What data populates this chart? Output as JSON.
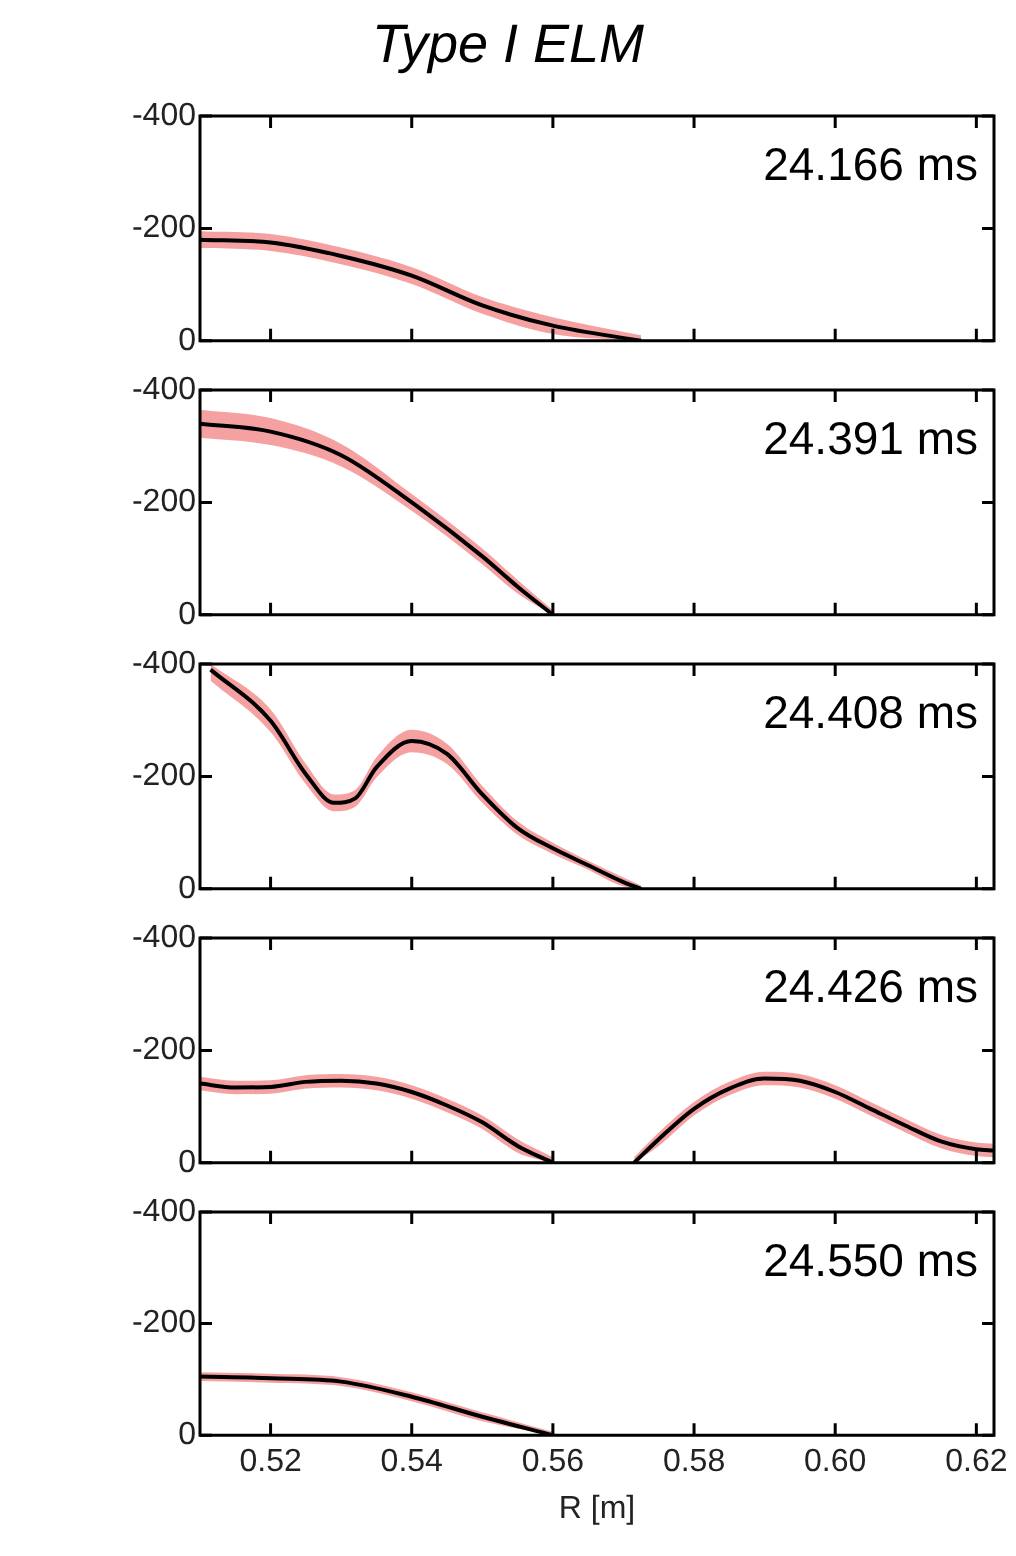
{
  "chart_data": [
    {
      "type": "line",
      "title": "Type I ELM",
      "x": [
        0.51,
        0.52,
        0.53,
        0.54,
        0.55,
        0.56,
        0.5725
      ],
      "series": [
        {
          "color": "#000000",
          "values": [
            -180,
            -175,
            -151,
            -116,
            -63,
            -27,
            0
          ],
          "lower": [
            -195,
            -190,
            -166,
            -131,
            -78,
            -42,
            -10
          ],
          "upper": [
            -165,
            -160,
            -136,
            -101,
            -48,
            -12,
            0
          ]
        }
      ],
      "xlim": [
        0.51,
        0.6225
      ],
      "xticks": [
        {
          "value": 0.52,
          "label": null
        },
        {
          "value": 0.54,
          "label": null
        },
        {
          "value": 0.56,
          "label": null
        },
        {
          "value": 0.58,
          "label": null
        },
        {
          "value": 0.6,
          "label": null
        },
        {
          "value": 0.62,
          "label": null
        }
      ],
      "ylim": [
        0,
        -400
      ],
      "yticks": [
        -400,
        -200,
        0
      ],
      "grid": false,
      "marker": "none",
      "tick_labels": "y",
      "annotations": [
        "24.166 ms"
      ]
    },
    {
      "type": "line",
      "x": [
        0.51,
        0.52,
        0.53,
        0.54,
        0.55,
        0.555,
        0.56
      ],
      "series": [
        {
          "color": "#000000",
          "values": [
            -340,
            -326,
            -284,
            -200,
            -104,
            -50,
            0
          ],
          "lower": [
            -365,
            -350,
            -304,
            -215,
            -118,
            -62,
            -8
          ],
          "upper": [
            -315,
            -302,
            -264,
            -185,
            -90,
            -38,
            0
          ]
        }
      ],
      "xlim": [
        0.51,
        0.6225
      ],
      "xticks": [
        {
          "value": 0.52,
          "label": null
        },
        {
          "value": 0.54,
          "label": null
        },
        {
          "value": 0.56,
          "label": null
        },
        {
          "value": 0.58,
          "label": null
        },
        {
          "value": 0.6,
          "label": null
        },
        {
          "value": 0.62,
          "label": null
        }
      ],
      "ylim": [
        0,
        -400
      ],
      "yticks": [
        -400,
        -200,
        0
      ],
      "grid": false,
      "marker": "none",
      "tick_labels": "y",
      "annotations": [
        "24.391 ms"
      ]
    },
    {
      "type": "line",
      "x": [
        0.5115,
        0.52,
        0.525,
        0.529,
        0.532,
        0.535,
        0.54,
        0.545,
        0.55,
        0.555,
        0.56,
        0.565,
        0.57,
        0.5725
      ],
      "series": [
        {
          "color": "#000000",
          "values": [
            -390,
            -299,
            -204,
            -153,
            -161,
            -216,
            -263,
            -240,
            -168,
            -108,
            -72,
            -42,
            -12,
            0
          ],
          "lower": [
            -400,
            -319,
            -222,
            -168,
            -176,
            -234,
            -283,
            -258,
            -183,
            -120,
            -82,
            -50,
            -20,
            -6
          ],
          "upper": [
            -370,
            -279,
            -186,
            -138,
            -146,
            -198,
            -243,
            -222,
            -153,
            -96,
            -62,
            -34,
            -4,
            0
          ]
        }
      ],
      "xlim": [
        0.51,
        0.6225
      ],
      "xticks": [
        {
          "value": 0.52,
          "label": null
        },
        {
          "value": 0.54,
          "label": null
        },
        {
          "value": 0.56,
          "label": null
        },
        {
          "value": 0.58,
          "label": null
        },
        {
          "value": 0.6,
          "label": null
        },
        {
          "value": 0.62,
          "label": null
        }
      ],
      "ylim": [
        0,
        -400
      ],
      "yticks": [
        -400,
        -200,
        0
      ],
      "grid": false,
      "marker": "none",
      "tick_labels": "y",
      "annotations": [
        "24.408 ms"
      ]
    },
    {
      "type": "line",
      "x": [
        0.51,
        0.515,
        0.52,
        0.525,
        0.53,
        0.535,
        0.54,
        0.545,
        0.55,
        0.555,
        0.56,
        0.5658,
        0.5715,
        0.575,
        0.58,
        0.585,
        0.59,
        0.595,
        0.6,
        0.605,
        0.61,
        0.615,
        0.62,
        0.6225
      ],
      "series": [
        {
          "color": "#000000",
          "values": [
            -141,
            -134,
            -135,
            -144,
            -146,
            -141,
            -126,
            -102,
            -72,
            -30,
            0,
            null,
            0,
            -42,
            -96,
            -132,
            -150,
            -146,
            -126,
            -96,
            -66,
            -38,
            -24,
            -22
          ],
          "lower": [
            -153,
            -146,
            -147,
            -156,
            -158,
            -153,
            -138,
            -114,
            -84,
            -42,
            -10,
            null,
            -10,
            -54,
            -108,
            -144,
            -162,
            -158,
            -138,
            -108,
            -78,
            -50,
            -36,
            -34
          ],
          "upper": [
            -129,
            -122,
            -123,
            -132,
            -134,
            -129,
            -114,
            -90,
            -60,
            -18,
            0,
            null,
            0,
            -30,
            -84,
            -120,
            -138,
            -134,
            -114,
            -84,
            -54,
            -26,
            -12,
            -10
          ]
        }
      ],
      "xlim": [
        0.51,
        0.6225
      ],
      "xticks": [
        {
          "value": 0.52,
          "label": null
        },
        {
          "value": 0.54,
          "label": null
        },
        {
          "value": 0.56,
          "label": null
        },
        {
          "value": 0.58,
          "label": null
        },
        {
          "value": 0.6,
          "label": null
        },
        {
          "value": 0.62,
          "label": null
        }
      ],
      "ylim": [
        0,
        -400
      ],
      "yticks": [
        -400,
        -200,
        0
      ],
      "grid": false,
      "marker": "none",
      "tick_labels": "y",
      "annotations": [
        "24.426 ms"
      ]
    },
    {
      "type": "line",
      "xlabel": "R [m]",
      "x": [
        0.51,
        0.52,
        0.53,
        0.54,
        0.55,
        0.56
      ],
      "series": [
        {
          "color": "#000000",
          "values": [
            -105,
            -102,
            -96,
            -69,
            -33,
            0
          ],
          "lower": [
            -113,
            -110,
            -104,
            -77,
            -41,
            -6
          ],
          "upper": [
            -97,
            -94,
            -88,
            -61,
            -25,
            0
          ]
        }
      ],
      "xlim": [
        0.51,
        0.6225
      ],
      "xticks": [
        {
          "value": 0.52,
          "label": "0.52"
        },
        {
          "value": 0.54,
          "label": "0.54"
        },
        {
          "value": 0.56,
          "label": "0.56"
        },
        {
          "value": 0.58,
          "label": "0.58"
        },
        {
          "value": 0.6,
          "label": "0.60"
        },
        {
          "value": 0.62,
          "label": "0.62"
        }
      ],
      "ylim": [
        0,
        -400
      ],
      "yticks": [
        -400,
        -200,
        0
      ],
      "grid": false,
      "marker": "none",
      "annotations": [
        "24.550 ms"
      ]
    }
  ]
}
